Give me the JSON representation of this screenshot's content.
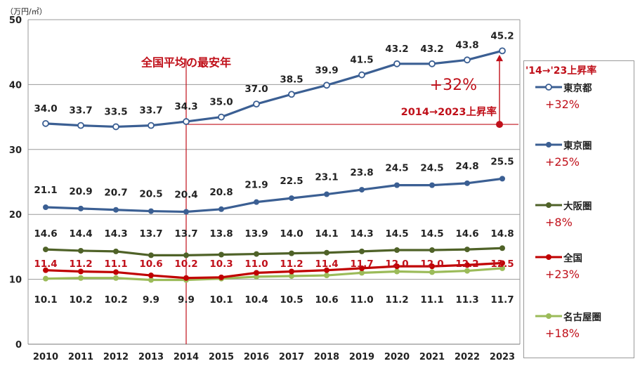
{
  "chart_data": {
    "type": "line",
    "unit_label": "（万円/㎡）",
    "categories": [
      "2010",
      "2011",
      "2012",
      "2013",
      "2014",
      "2015",
      "2016",
      "2017",
      "2018",
      "2019",
      "2020",
      "2021",
      "2022",
      "2023"
    ],
    "ylim": [
      0,
      50
    ],
    "yticks": [
      "0",
      "10",
      "20",
      "30",
      "40",
      "50"
    ],
    "series": [
      {
        "name": "東京都",
        "color": "#3b5f93",
        "marker": "open",
        "label_color": "#222222",
        "label_pos": "above",
        "values": [
          34.0,
          33.7,
          33.5,
          33.7,
          34.3,
          35.0,
          37.0,
          38.5,
          39.9,
          41.5,
          43.2,
          43.2,
          43.8,
          45.2
        ],
        "labels": [
          "34.0",
          "33.7",
          "33.5",
          "33.7",
          "34.3",
          "35.0",
          "37.0",
          "38.5",
          "39.9",
          "41.5",
          "43.2",
          "43.2",
          "43.8",
          "45.2"
        ],
        "change": "+32%"
      },
      {
        "name": "東京圏",
        "color": "#3b5f93",
        "marker": "filled",
        "label_color": "#222222",
        "label_pos": "above",
        "values": [
          21.1,
          20.9,
          20.7,
          20.5,
          20.4,
          20.8,
          21.9,
          22.5,
          23.1,
          23.8,
          24.5,
          24.5,
          24.8,
          25.5
        ],
        "labels": [
          "21.1",
          "20.9",
          "20.7",
          "20.5",
          "20.4",
          "20.8",
          "21.9",
          "22.5",
          "23.1",
          "23.8",
          "24.5",
          "24.5",
          "24.8",
          "25.5"
        ],
        "change": "+25%"
      },
      {
        "name": "大阪圏",
        "color": "#4f6228",
        "marker": "filled",
        "label_color": "#222222",
        "label_pos": "above",
        "values": [
          14.6,
          14.4,
          14.3,
          13.7,
          13.7,
          13.8,
          13.9,
          14.0,
          14.1,
          14.3,
          14.5,
          14.5,
          14.6,
          14.8
        ],
        "labels": [
          "14.6",
          "14.4",
          "14.3",
          "13.7",
          "13.7",
          "13.8",
          "13.9",
          "14.0",
          "14.1",
          "14.3",
          "14.5",
          "14.5",
          "14.6",
          "14.8"
        ],
        "change": "+8%"
      },
      {
        "name": "全国",
        "color": "#c00000",
        "marker": "filled",
        "label_color": "#c0101a",
        "label_pos": "above",
        "values": [
          11.4,
          11.2,
          11.1,
          10.6,
          10.2,
          10.3,
          11.0,
          11.2,
          11.4,
          11.7,
          12.0,
          12.0,
          12.2,
          12.5
        ],
        "labels": [
          "11.4",
          "11.2",
          "11.1",
          "10.6",
          "10.2",
          "10.3",
          "11.0",
          "11.2",
          "11.4",
          "11.7",
          "12.0",
          "12.0",
          "12.2",
          "12.5"
        ],
        "change": "+23%"
      },
      {
        "name": "名古屋圏",
        "color": "#9bbb59",
        "marker": "filled",
        "label_color": "#222222",
        "label_pos": "below",
        "values": [
          10.1,
          10.2,
          10.2,
          9.9,
          9.9,
          10.1,
          10.4,
          10.5,
          10.6,
          11.0,
          11.2,
          11.1,
          11.3,
          11.7
        ],
        "labels": [
          "10.1",
          "10.2",
          "10.2",
          "9.9",
          "9.9",
          "10.1",
          "10.4",
          "10.5",
          "10.6",
          "11.0",
          "11.2",
          "11.1",
          "11.3",
          "11.7"
        ],
        "change": "+18%"
      }
    ],
    "annotations": {
      "lowest_year_label": "全国平均の最安年",
      "lowest_year": "2014",
      "rise_pct": "+32%",
      "rise_label": "2014→2023上昇率",
      "reference_value": 34.3
    },
    "legend_title": "'14→'23上昇率"
  }
}
